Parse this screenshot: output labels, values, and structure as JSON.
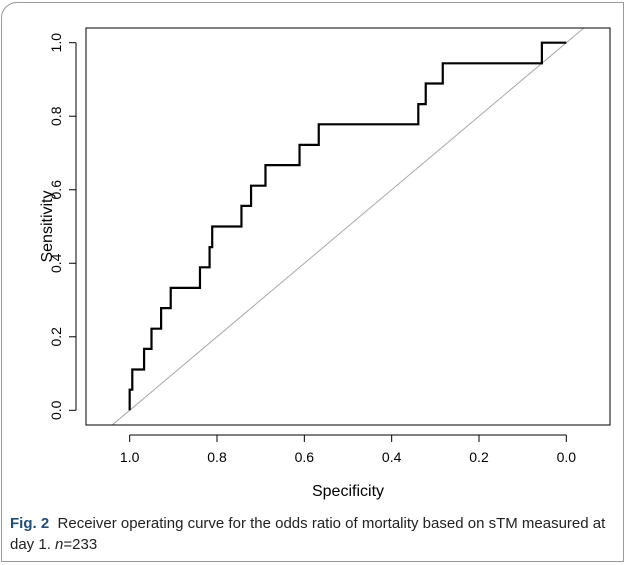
{
  "chart_data": {
    "type": "line",
    "title": "",
    "xlabel": "Specificity",
    "ylabel": "Sensitivity",
    "xlim": [
      1.1,
      -0.1
    ],
    "ylim": [
      -0.04,
      1.04
    ],
    "x_reversed": true,
    "xticks": [
      1.0,
      0.8,
      0.6,
      0.4,
      0.2,
      0.0
    ],
    "xtick_labels": [
      "1.0",
      "0.8",
      "0.6",
      "0.4",
      "0.2",
      "0.0"
    ],
    "yticks": [
      0.0,
      0.2,
      0.4,
      0.6,
      0.8,
      1.0
    ],
    "ytick_labels": [
      "0.0",
      "0.2",
      "0.4",
      "0.6",
      "0.8",
      "1.0"
    ],
    "grid": false,
    "series": [
      {
        "color": "#000000",
        "x": [
          1.0,
          1.0,
          0.994,
          0.994,
          0.989,
          0.989,
          0.967,
          0.967,
          0.95,
          0.95,
          0.928,
          0.928,
          0.906,
          0.906,
          0.839,
          0.839,
          0.817,
          0.817,
          0.811,
          0.811,
          0.8,
          0.8,
          0.744,
          0.744,
          0.722,
          0.722,
          0.689,
          0.689,
          0.611,
          0.611,
          0.567,
          0.567,
          0.339,
          0.339,
          0.322,
          0.322,
          0.283,
          0.283,
          0.056,
          0.056,
          0.0
        ],
        "y": [
          0.0,
          0.056,
          0.056,
          0.111,
          0.111,
          0.111,
          0.111,
          0.167,
          0.167,
          0.222,
          0.222,
          0.278,
          0.278,
          0.333,
          0.333,
          0.389,
          0.389,
          0.444,
          0.444,
          0.5,
          0.5,
          0.5,
          0.5,
          0.556,
          0.556,
          0.611,
          0.611,
          0.667,
          0.667,
          0.722,
          0.722,
          0.778,
          0.778,
          0.833,
          0.833,
          0.889,
          0.889,
          0.944,
          0.944,
          1.0,
          1.0
        ]
      },
      {
        "color": "#a8a8a8",
        "x": [
          1.04,
          -0.04
        ],
        "y": [
          -0.04,
          1.04
        ]
      }
    ]
  },
  "caption": {
    "label": "Fig. 2",
    "text_before_n": "Receiver operating curve for the odds ratio of mortality based on sTM measured at day 1.",
    "n_label": "n",
    "n_value": "=233"
  }
}
